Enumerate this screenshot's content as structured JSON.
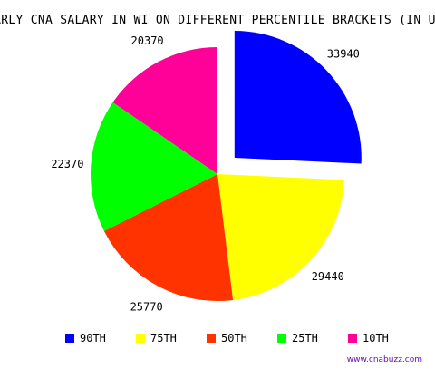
{
  "chart_data": {
    "type": "pie",
    "title": "YEARLY CNA SALARY IN WI ON DIFFERENT PERCENTILE BRACKETS (IN USD)",
    "slices": [
      {
        "label": "90TH",
        "value": 33940,
        "color": "#0000ff",
        "exploded": true
      },
      {
        "label": "75TH",
        "value": 29440,
        "color": "#ffff00",
        "exploded": false
      },
      {
        "label": "50TH",
        "value": 25770,
        "color": "#ff3300",
        "exploded": false
      },
      {
        "label": "25TH",
        "value": 22370,
        "color": "#00ff00",
        "exploded": false
      },
      {
        "label": "10TH",
        "value": 20370,
        "color": "#ff0099",
        "exploded": false
      }
    ],
    "legend_position": "bottom"
  },
  "watermark": "www.cnabuzz.com"
}
